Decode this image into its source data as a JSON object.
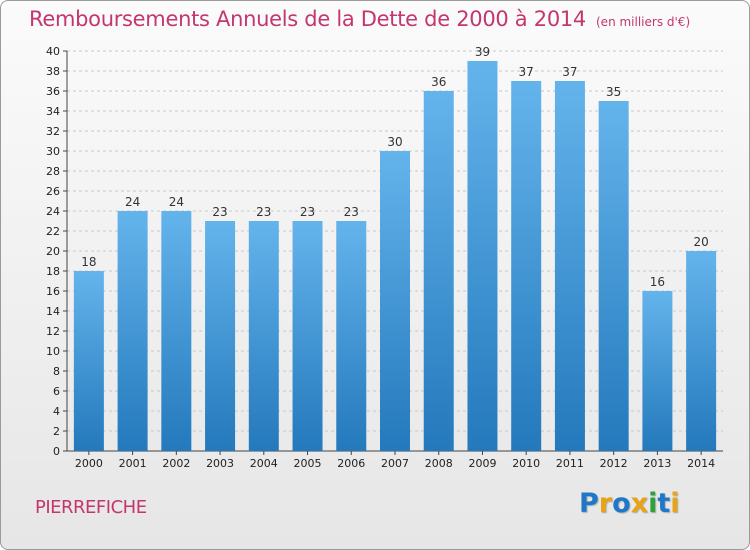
{
  "chart_data": {
    "type": "bar",
    "title": "Remboursements Annuels de la Dette de 2000 à 2014",
    "unit": "(en milliers d'€)",
    "categories": [
      "2000",
      "2001",
      "2002",
      "2003",
      "2004",
      "2005",
      "2006",
      "2007",
      "2008",
      "2009",
      "2010",
      "2011",
      "2012",
      "2013",
      "2014"
    ],
    "values": [
      18,
      24,
      24,
      23,
      23,
      23,
      23,
      30,
      36,
      39,
      37,
      37,
      35,
      16,
      20
    ],
    "ylim": [
      0,
      40
    ],
    "ytick_step": 2,
    "grid": true,
    "legend": "none",
    "colors": {
      "bar_top": "#64b4ec",
      "bar_bottom": "#2479bc",
      "title": "#c4366f",
      "grid": "#c8c8c8"
    }
  },
  "footer": {
    "commune": "PIERREFICHE",
    "brand": "Proxiti",
    "brand_letters": [
      {
        "ch": "P",
        "color": "#1f77c8"
      },
      {
        "ch": "r",
        "color": "#e8a317"
      },
      {
        "ch": "o",
        "color": "#1f77c8"
      },
      {
        "ch": "x",
        "color": "#e8a317"
      },
      {
        "ch": "i",
        "color": "#2ea23a"
      },
      {
        "ch": "t",
        "color": "#1f77c8"
      },
      {
        "ch": "i",
        "color": "#e8a317"
      }
    ]
  }
}
